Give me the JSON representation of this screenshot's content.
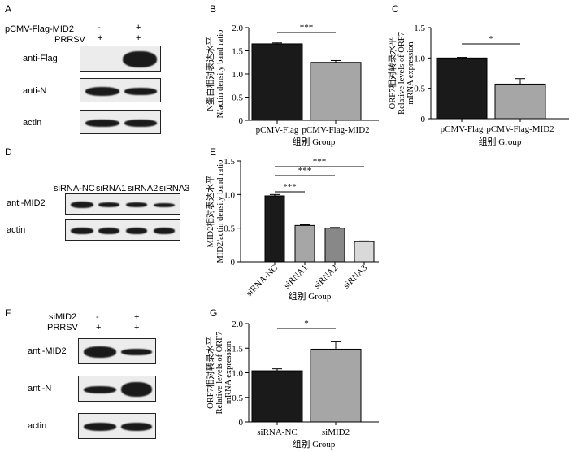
{
  "panels": {
    "A": {
      "letter": "A",
      "rows": [
        {
          "label": "pCMV-Flag-MID2",
          "marks": [
            "-",
            "+"
          ]
        },
        {
          "label": "PRRSV",
          "marks": [
            "+",
            "+"
          ]
        }
      ],
      "blots": [
        "anti-Flag",
        "anti-N",
        "actin"
      ]
    },
    "D": {
      "letter": "D",
      "lanes": [
        "siRNA-NC",
        "siRNA1",
        "siRNA2",
        "siRNA3"
      ],
      "blots": [
        "anti-MID2",
        "actin"
      ]
    },
    "F": {
      "letter": "F",
      "rows": [
        {
          "label": "siMID2",
          "marks": [
            "-",
            "+"
          ]
        },
        {
          "label": "PRRSV",
          "marks": [
            "+",
            "+"
          ]
        }
      ],
      "blots": [
        "anti-MID2",
        "anti-N",
        "actin"
      ]
    },
    "B_letter": "B",
    "C_letter": "C",
    "E_letter": "E",
    "G_letter": "G"
  },
  "chart_data": [
    {
      "id": "B",
      "type": "bar",
      "categories": [
        "pCMV-Flag",
        "pCMV-Flag-MID2"
      ],
      "values": [
        1.65,
        1.25
      ],
      "errors": [
        0.02,
        0.04
      ],
      "colors": [
        "#1a1a1a",
        "#a6a6a6"
      ],
      "xlabel": "组别 Group",
      "ylabel": [
        "N蛋白相对表达水平",
        "N/actin density band ratio"
      ],
      "ylim": [
        0,
        2.0
      ],
      "yticks": [
        "0",
        "0.5",
        "1.0",
        "1.5",
        "2.0"
      ],
      "significance": [
        {
          "from": 0,
          "to": 1,
          "label": "***"
        }
      ]
    },
    {
      "id": "C",
      "type": "bar",
      "categories": [
        "pCMV-Flag",
        "pCMV-Flag-MID2"
      ],
      "values": [
        1.0,
        0.57
      ],
      "errors": [
        0.01,
        0.09
      ],
      "colors": [
        "#1a1a1a",
        "#a6a6a6"
      ],
      "xlabel": "组别 Group",
      "ylabel": [
        "ORF7相对转录水平",
        "Relative levels of ORF7",
        "mRNA expression"
      ],
      "ylim": [
        0,
        1.5
      ],
      "yticks": [
        "0",
        "0.5",
        "1.0",
        "1.5"
      ],
      "significance": [
        {
          "from": 0,
          "to": 1,
          "label": "*"
        }
      ]
    },
    {
      "id": "E",
      "type": "bar",
      "categories": [
        "siRNA-NC",
        "siRNA1",
        "siRNA2",
        "siRNA3"
      ],
      "values": [
        0.98,
        0.54,
        0.5,
        0.3
      ],
      "errors": [
        0.02,
        0.01,
        0.01,
        0.01
      ],
      "colors": [
        "#1a1a1a",
        "#a6a6a6",
        "#888888",
        "#d9d9d9"
      ],
      "xlabel": "组别 Group",
      "ylabel": [
        "MID2相对表达水平",
        "MID2/actin density band ratio"
      ],
      "ylim": [
        0,
        1.5
      ],
      "yticks": [
        "0",
        "0.5",
        "1.0",
        "1.5"
      ],
      "significance": [
        {
          "from": 0,
          "to": 1,
          "label": "***"
        },
        {
          "from": 0,
          "to": 2,
          "label": "***"
        },
        {
          "from": 0,
          "to": 3,
          "label": "***"
        }
      ]
    },
    {
      "id": "G",
      "type": "bar",
      "categories": [
        "siRNA-NC",
        "siMID2"
      ],
      "values": [
        1.04,
        1.48
      ],
      "errors": [
        0.04,
        0.15
      ],
      "colors": [
        "#1a1a1a",
        "#a6a6a6"
      ],
      "xlabel": "组别 Group",
      "ylabel": [
        "ORF7相对转录水平",
        "Relative levels of ORF7",
        "mRNA expression"
      ],
      "ylim": [
        0,
        2.0
      ],
      "yticks": [
        "0",
        "0.5",
        "1.0",
        "1.5",
        "2.0"
      ],
      "significance": [
        {
          "from": 0,
          "to": 1,
          "label": "*"
        }
      ]
    }
  ]
}
